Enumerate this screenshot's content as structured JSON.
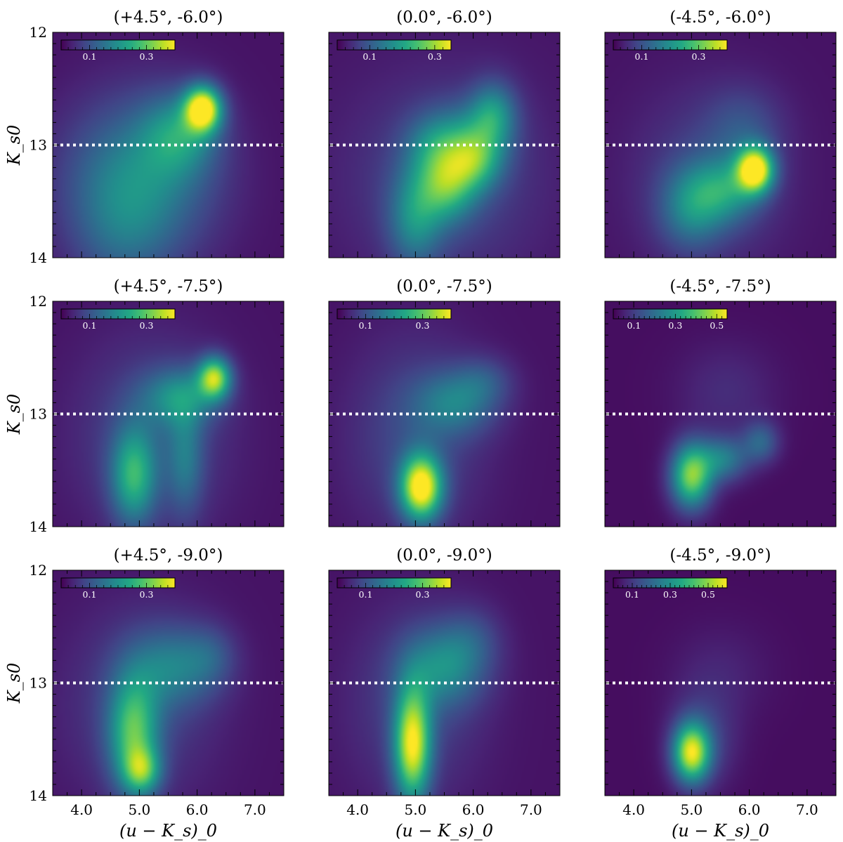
{
  "chart_data": {
    "type": "heatmap",
    "figure": {
      "layout": "3x3 grid of density maps",
      "colormap": "viridis",
      "shared_x": true,
      "shared_y": true,
      "xlabel": "(u − K_s)_0",
      "ylabel": "K_s0",
      "xlim": [
        3.5,
        7.5
      ],
      "ylim": [
        14,
        12
      ],
      "y_inverted": true,
      "xticks": [
        4.0,
        5.0,
        6.0,
        7.0
      ],
      "xtick_labels": [
        "4.0",
        "5.0",
        "6.0",
        "7.0"
      ],
      "yticks": [
        12,
        13,
        14
      ],
      "ytick_labels": [
        "12",
        "13",
        "14"
      ],
      "reference_line": {
        "y": 13.0,
        "style": "dotted",
        "color": "#ffffff"
      },
      "colorbar_placement": "inset top-left"
    },
    "panels": [
      {
        "title": "(+4.5°, -6.0°)",
        "colorbar": {
          "ticks": [
            "0.1",
            "0.3"
          ],
          "tick_values": [
            0.1,
            0.3
          ],
          "max": 0.4
        },
        "background": 0.02,
        "blobs": [
          {
            "x": 6.1,
            "y": 12.68,
            "sx": 0.22,
            "sy": 0.14,
            "a": 0.38
          },
          {
            "x": 5.7,
            "y": 12.9,
            "sx": 0.45,
            "sy": 0.25,
            "a": 0.14
          },
          {
            "x": 5.0,
            "y": 13.3,
            "sx": 0.9,
            "sy": 0.5,
            "a": 0.16
          },
          {
            "x": 4.7,
            "y": 13.8,
            "sx": 0.6,
            "sy": 0.4,
            "a": 0.06
          }
        ]
      },
      {
        "title": "(0.0°, -6.0°)",
        "colorbar": {
          "ticks": [
            "0.1",
            "0.3"
          ],
          "tick_values": [
            0.1,
            0.3
          ],
          "max": 0.35
        },
        "background": 0.02,
        "blobs": [
          {
            "x": 5.55,
            "y": 13.35,
            "sx": 0.35,
            "sy": 0.22,
            "a": 0.17
          },
          {
            "x": 6.05,
            "y": 13.15,
            "sx": 0.32,
            "sy": 0.18,
            "a": 0.12
          },
          {
            "x": 6.35,
            "y": 12.72,
            "sx": 0.28,
            "sy": 0.2,
            "a": 0.13
          },
          {
            "x": 5.9,
            "y": 12.95,
            "sx": 0.45,
            "sy": 0.22,
            "a": 0.1
          },
          {
            "x": 5.0,
            "y": 13.65,
            "sx": 0.32,
            "sy": 0.3,
            "a": 0.12
          },
          {
            "x": 5.3,
            "y": 13.0,
            "sx": 0.35,
            "sy": 0.2,
            "a": 0.07
          },
          {
            "x": 5.5,
            "y": 13.3,
            "sx": 1.1,
            "sy": 0.6,
            "a": 0.06
          }
        ]
      },
      {
        "title": "(-4.5°, -6.0°)",
        "colorbar": {
          "ticks": [
            "0.1",
            "0.3"
          ],
          "tick_values": [
            0.1,
            0.3
          ],
          "max": 0.4
        },
        "background": 0.02,
        "blobs": [
          {
            "x": 6.1,
            "y": 13.22,
            "sx": 0.22,
            "sy": 0.14,
            "a": 0.38
          },
          {
            "x": 5.6,
            "y": 13.4,
            "sx": 0.4,
            "sy": 0.2,
            "a": 0.14
          },
          {
            "x": 5.0,
            "y": 13.55,
            "sx": 0.38,
            "sy": 0.25,
            "a": 0.13
          },
          {
            "x": 5.9,
            "y": 12.85,
            "sx": 0.45,
            "sy": 0.25,
            "a": 0.06
          },
          {
            "x": 5.3,
            "y": 13.3,
            "sx": 0.9,
            "sy": 0.55,
            "a": 0.06
          }
        ]
      },
      {
        "title": "(+4.5°, -7.5°)",
        "colorbar": {
          "ticks": [
            "0.1",
            "0.3"
          ],
          "tick_values": [
            0.1,
            0.3
          ],
          "max": 0.4
        },
        "background": 0.02,
        "blobs": [
          {
            "x": 6.3,
            "y": 12.68,
            "sx": 0.2,
            "sy": 0.13,
            "a": 0.3
          },
          {
            "x": 5.7,
            "y": 12.85,
            "sx": 0.45,
            "sy": 0.18,
            "a": 0.14
          },
          {
            "x": 4.9,
            "y": 13.55,
            "sx": 0.27,
            "sy": 0.3,
            "a": 0.2
          },
          {
            "x": 5.8,
            "y": 13.4,
            "sx": 0.22,
            "sy": 0.35,
            "a": 0.1
          },
          {
            "x": 5.2,
            "y": 13.2,
            "sx": 0.9,
            "sy": 0.6,
            "a": 0.07
          }
        ]
      },
      {
        "title": "(0.0°, -7.5°)",
        "colorbar": {
          "ticks": [
            "0.1",
            "0.3"
          ],
          "tick_values": [
            0.1,
            0.3
          ],
          "max": 0.4
        },
        "background": 0.02,
        "blobs": [
          {
            "x": 5.1,
            "y": 13.65,
            "sx": 0.25,
            "sy": 0.2,
            "a": 0.38
          },
          {
            "x": 5.7,
            "y": 12.9,
            "sx": 0.5,
            "sy": 0.2,
            "a": 0.12
          },
          {
            "x": 6.2,
            "y": 12.7,
            "sx": 0.35,
            "sy": 0.15,
            "a": 0.06
          },
          {
            "x": 5.0,
            "y": 13.2,
            "sx": 0.8,
            "sy": 0.6,
            "a": 0.07
          }
        ]
      },
      {
        "title": "(-4.5°, -7.5°)",
        "colorbar": {
          "ticks": [
            "0.1",
            "0.3",
            "0.5"
          ],
          "tick_values": [
            0.1,
            0.3,
            0.5
          ],
          "max": 0.55
        },
        "background": 0.02,
        "blobs": [
          {
            "x": 5.0,
            "y": 13.55,
            "sx": 0.25,
            "sy": 0.2,
            "a": 0.42
          },
          {
            "x": 5.55,
            "y": 13.4,
            "sx": 0.3,
            "sy": 0.14,
            "a": 0.2
          },
          {
            "x": 6.2,
            "y": 13.25,
            "sx": 0.22,
            "sy": 0.13,
            "a": 0.15
          },
          {
            "x": 5.6,
            "y": 12.8,
            "sx": 0.6,
            "sy": 0.3,
            "a": 0.05
          }
        ]
      },
      {
        "title": "(+4.5°, -9.0°)",
        "colorbar": {
          "ticks": [
            "0.1",
            "0.3"
          ],
          "tick_values": [
            0.1,
            0.3
          ],
          "max": 0.4
        },
        "background": 0.02,
        "blobs": [
          {
            "x": 5.05,
            "y": 13.78,
            "sx": 0.22,
            "sy": 0.14,
            "a": 0.18
          },
          {
            "x": 4.9,
            "y": 13.45,
            "sx": 0.3,
            "sy": 0.35,
            "a": 0.23
          },
          {
            "x": 5.6,
            "y": 12.85,
            "sx": 0.55,
            "sy": 0.25,
            "a": 0.12
          },
          {
            "x": 6.25,
            "y": 12.75,
            "sx": 0.3,
            "sy": 0.18,
            "a": 0.05
          },
          {
            "x": 5.0,
            "y": 13.2,
            "sx": 0.9,
            "sy": 0.6,
            "a": 0.06
          }
        ]
      },
      {
        "title": "(0.0°, -9.0°)",
        "colorbar": {
          "ticks": [
            "0.1",
            "0.3"
          ],
          "tick_values": [
            0.1,
            0.3
          ],
          "max": 0.4
        },
        "background": 0.02,
        "blobs": [
          {
            "x": 4.95,
            "y": 13.55,
            "sx": 0.22,
            "sy": 0.35,
            "a": 0.34
          },
          {
            "x": 5.5,
            "y": 12.85,
            "sx": 0.5,
            "sy": 0.25,
            "a": 0.14
          },
          {
            "x": 6.0,
            "y": 12.6,
            "sx": 0.35,
            "sy": 0.2,
            "a": 0.05
          },
          {
            "x": 5.0,
            "y": 13.2,
            "sx": 0.8,
            "sy": 0.6,
            "a": 0.06
          }
        ]
      },
      {
        "title": "(-4.5°, -9.0°)",
        "colorbar": {
          "ticks": [
            "0.1",
            "0.3",
            "0.5"
          ],
          "tick_values": [
            0.1,
            0.3,
            0.5
          ],
          "max": 0.6
        },
        "background": 0.02,
        "blobs": [
          {
            "x": 5.0,
            "y": 13.62,
            "sx": 0.22,
            "sy": 0.18,
            "a": 0.5
          },
          {
            "x": 5.2,
            "y": 13.5,
            "sx": 0.4,
            "sy": 0.3,
            "a": 0.1
          },
          {
            "x": 5.5,
            "y": 12.9,
            "sx": 0.6,
            "sy": 0.3,
            "a": 0.04
          }
        ]
      }
    ]
  }
}
